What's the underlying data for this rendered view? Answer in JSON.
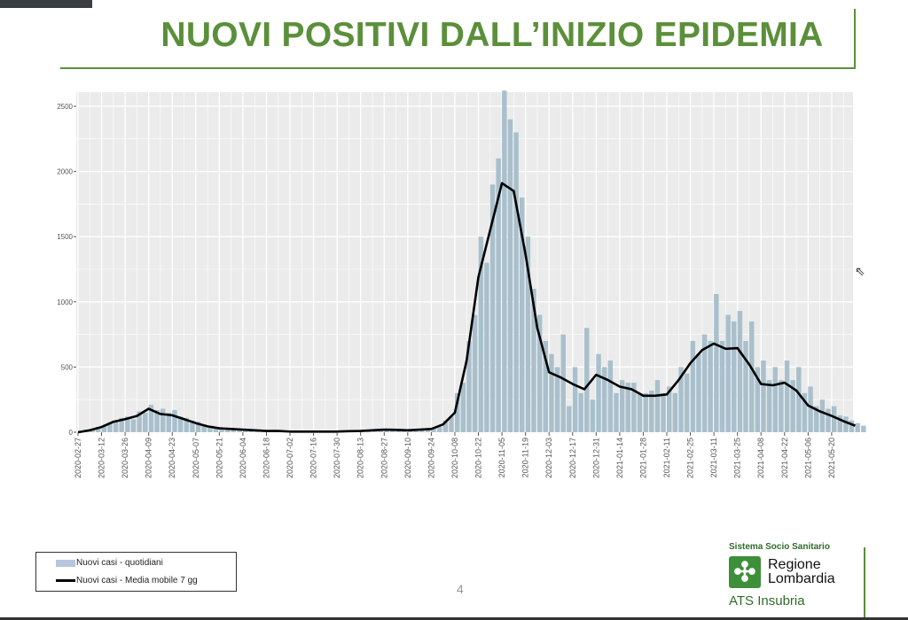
{
  "slide": {
    "title": "NUOVI POSITIVI DALL’INIZIO EPIDEMIA",
    "page_number": "4"
  },
  "legend": {
    "bars_label": "Nuovi casi - quotidiani",
    "line_label": "Nuovi casi - Media mobile 7 gg"
  },
  "logo": {
    "top": "Sistema Socio Sanitario",
    "line1": "Regione",
    "line2": "Lombardia",
    "bottom": "ATS Insubria"
  },
  "colors": {
    "title": "#5b8f3a",
    "bars": "#a9c0cc",
    "line": "#000000",
    "panel": "#ebebeb"
  },
  "chart_data": {
    "type": "bar",
    "title": "NUOVI POSITIVI DALL’INIZIO EPIDEMIA",
    "xlabel": "",
    "ylabel": "",
    "ylim": [
      0,
      2620
    ],
    "yticks": [
      "0",
      "500",
      "1000",
      "1500",
      "2000",
      "2500"
    ],
    "ytick_values": [
      0,
      500,
      1000,
      1500,
      2000,
      2500
    ],
    "start_date": "2020-02-27",
    "xticks": [
      "2020-02-27",
      "2020-03-12",
      "2020-03-26",
      "2020-04-09",
      "2020-04-23",
      "2020-05-07",
      "2020-05-21",
      "2020-06-04",
      "2020-06-18",
      "2020-07-02",
      "2020-07-16",
      "2020-07-30",
      "2020-08-13",
      "2020-08-27",
      "2020-09-10",
      "2020-09-24",
      "2020-10-08",
      "2020-10-22",
      "2020-11-05",
      "2020-11-19",
      "2020-12-03",
      "2020-12-17",
      "2020-12-31",
      "2021-01-14",
      "2021-01-28",
      "2021-02-11",
      "2021-02-25",
      "2021-03-11",
      "2021-03-25",
      "2021-04-08",
      "2021-04-22",
      "2021-05-06",
      "2021-05-20"
    ],
    "xtick_day_offsets": [
      0,
      14,
      28,
      42,
      56,
      70,
      84,
      98,
      112,
      126,
      140,
      154,
      168,
      182,
      196,
      210,
      224,
      238,
      252,
      266,
      280,
      294,
      308,
      322,
      336,
      350,
      364,
      378,
      392,
      406,
      420,
      434,
      448
    ],
    "series": [
      {
        "name": "Nuovi casi - quotidiani",
        "kind": "bar",
        "step_days": 3.5,
        "values": [
          5,
          20,
          25,
          40,
          50,
          70,
          90,
          110,
          120,
          100,
          160,
          150,
          210,
          170,
          180,
          150,
          170,
          120,
          110,
          90,
          80,
          60,
          50,
          40,
          35,
          30,
          30,
          25,
          25,
          20,
          20,
          15,
          15,
          10,
          10,
          10,
          8,
          6,
          6,
          6,
          6,
          6,
          6,
          6,
          6,
          8,
          10,
          10,
          12,
          14,
          20,
          20,
          25,
          22,
          20,
          18,
          18,
          20,
          25,
          25,
          30,
          40,
          90,
          120,
          300,
          380,
          700,
          900,
          1500,
          1300,
          1900,
          2100,
          2620,
          2400,
          2300,
          1800,
          1500,
          1100,
          900,
          700,
          600,
          500,
          750,
          200,
          500,
          300,
          800,
          250,
          600,
          500,
          550,
          300,
          400,
          380,
          380,
          300,
          300,
          320,
          400,
          300,
          350,
          300,
          500,
          450,
          700,
          600,
          750,
          700,
          1060,
          700,
          900,
          850,
          930,
          700,
          850,
          500,
          550,
          400,
          500,
          400,
          550,
          400,
          500,
          300,
          350,
          200,
          250,
          180,
          200,
          130,
          120,
          90,
          70,
          50
        ]
      },
      {
        "name": "Nuovi casi - Media mobile 7 gg",
        "kind": "line",
        "step_days": 7,
        "values": [
          0,
          15,
          40,
          80,
          100,
          125,
          180,
          140,
          130,
          100,
          70,
          45,
          30,
          25,
          20,
          15,
          10,
          10,
          5,
          5,
          5,
          5,
          5,
          8,
          10,
          15,
          20,
          18,
          15,
          20,
          25,
          60,
          150,
          550,
          1190,
          1550,
          1910,
          1850,
          1365,
          800,
          460,
          420,
          370,
          330,
          440,
          400,
          350,
          330,
          280,
          280,
          290,
          400,
          530,
          630,
          680,
          640,
          645,
          520,
          370,
          360,
          380,
          320,
          205,
          160,
          125,
          85,
          50
        ]
      }
    ],
    "legend_position": "bottom-left",
    "grid": true
  }
}
